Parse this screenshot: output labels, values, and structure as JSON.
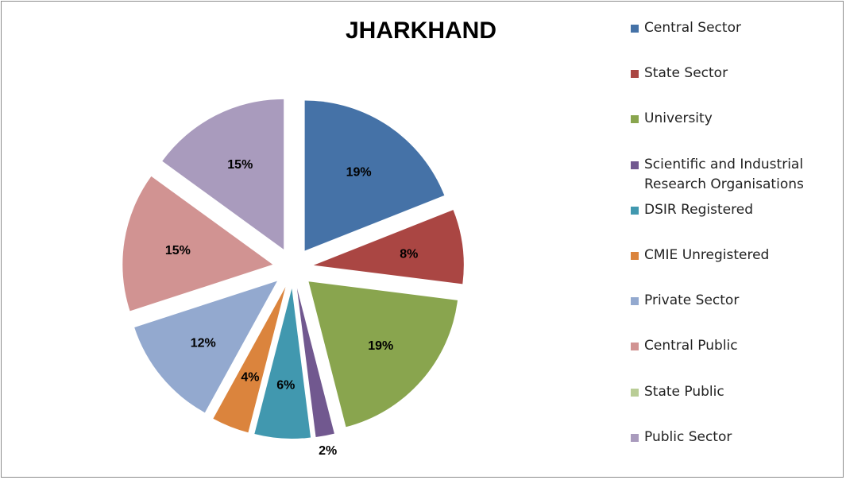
{
  "chart_data": {
    "type": "pie",
    "title": "JHARKHAND",
    "categories": [
      "Central Sector",
      "State Sector",
      "University",
      "Scientific and Industrial Research Organisations",
      "DSIR Registered",
      "CMIE Unregistered",
      "Private Sector",
      "Central Public",
      "State Public",
      "Public Sector"
    ],
    "values": [
      19,
      8,
      19,
      2,
      6,
      4,
      12,
      15,
      0,
      15
    ],
    "labels": [
      "19%",
      "8%",
      "19%",
      "2%",
      "6%",
      "4%",
      "12%",
      "15%",
      "",
      "15%"
    ],
    "colors": [
      "#4572A7",
      "#AA4643",
      "#89A54E",
      "#71588F",
      "#4198AF",
      "#DB843D",
      "#93A9CF",
      "#D19392",
      "#B9CD96",
      "#A99BBD"
    ],
    "legend_position": "right",
    "exploded": true
  }
}
